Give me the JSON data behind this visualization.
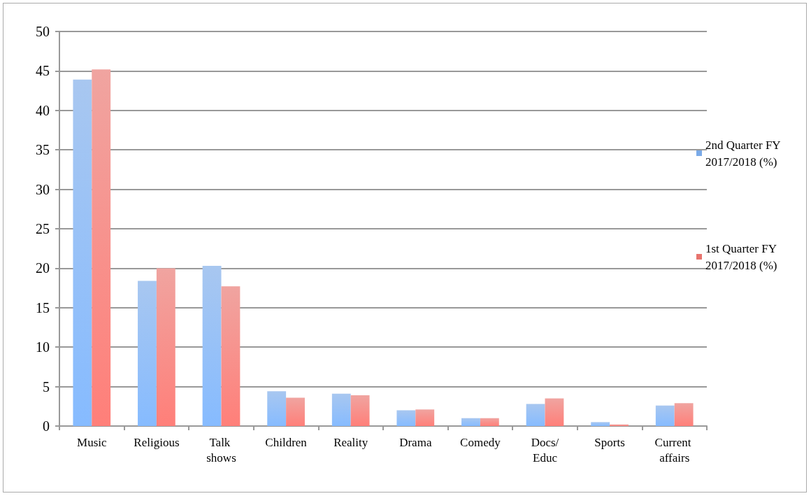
{
  "chart_data": {
    "type": "bar",
    "categories": [
      "Music",
      "Religious",
      "Talk shows",
      "Children",
      "Reality",
      "Drama",
      "Comedy",
      "Docs/Educ",
      "Sports",
      "Current affairs"
    ],
    "series": [
      {
        "name": "2nd Quarter FY 2017/2018 (%)",
        "color": "#7aaae8",
        "values": [
          43.9,
          18.4,
          20.3,
          4.4,
          4.1,
          2.0,
          1.0,
          2.8,
          0.5,
          2.6
        ]
      },
      {
        "name": "1st Quarter FY 2017/2018 (%)",
        "color": "#e8746e",
        "values": [
          45.2,
          20.0,
          17.7,
          3.6,
          3.9,
          2.1,
          1.0,
          3.5,
          0.2,
          2.9
        ]
      }
    ],
    "ylim": [
      0,
      50
    ],
    "yticks": [
      0,
      5,
      10,
      15,
      20,
      25,
      30,
      35,
      40,
      45,
      50
    ],
    "grid": "y",
    "legend": "right"
  }
}
